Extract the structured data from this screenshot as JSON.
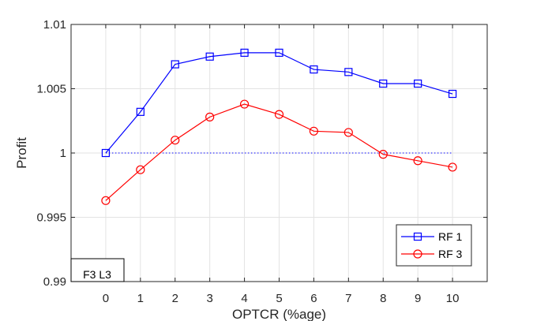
{
  "chart_data": {
    "type": "line",
    "title": "",
    "xlabel": "OPTCR (%age)",
    "ylabel": "Profit",
    "xlim": [
      -1,
      11
    ],
    "ylim": [
      0.99,
      1.01
    ],
    "x_ticks": [
      0,
      1,
      2,
      3,
      4,
      5,
      6,
      7,
      8,
      9,
      10
    ],
    "y_ticks": [
      0.99,
      0.995,
      1,
      1.005,
      1.01
    ],
    "y_tick_labels": [
      "0.99",
      "0.995",
      "1",
      "1.005",
      "1.01"
    ],
    "grid": true,
    "legend_position": "bottom-right",
    "x": [
      0,
      1,
      2,
      3,
      4,
      5,
      6,
      7,
      8,
      9,
      10
    ],
    "series": [
      {
        "name": "RF 1",
        "color": "#0000ff",
        "marker": "square",
        "values": [
          1.0,
          1.0032,
          1.0069,
          1.0075,
          1.0078,
          1.0078,
          1.0065,
          1.0063,
          1.0054,
          1.0054,
          1.0046
        ]
      },
      {
        "name": "RF 3",
        "color": "#ff0000",
        "marker": "circle",
        "values": [
          0.9963,
          0.9987,
          1.001,
          1.0028,
          1.0038,
          1.003,
          1.0017,
          1.0016,
          0.9999,
          0.9994,
          0.9989
        ]
      }
    ],
    "reference_line": {
      "y": 1,
      "style": "dotted",
      "color": "#0000ff"
    },
    "annotation": "F3 L3"
  }
}
